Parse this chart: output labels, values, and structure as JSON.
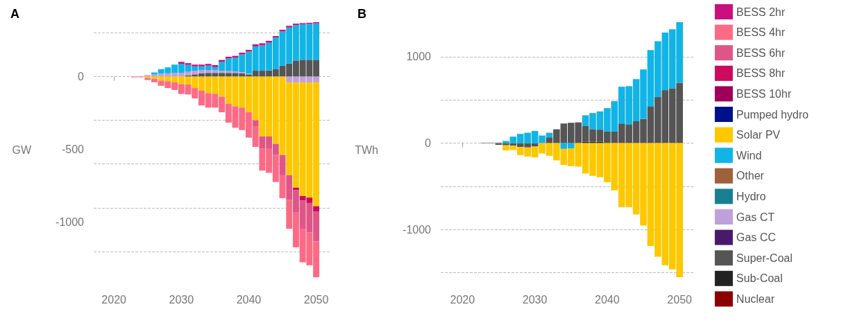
{
  "chart_data": [
    {
      "type": "bar",
      "title": "A",
      "ylabel": "GW",
      "stacked": true,
      "grid": "y",
      "legend": false,
      "x": [
        2023,
        2024,
        2025,
        2026,
        2027,
        2028,
        2029,
        2030,
        2031,
        2032,
        2033,
        2034,
        2035,
        2036,
        2037,
        2038,
        2039,
        2040,
        2041,
        2042,
        2043,
        2044,
        2045,
        2046,
        2047,
        2048,
        2049,
        2050
      ],
      "xlim": [
        2017,
        2052
      ],
      "xticks": [
        2020,
        2030,
        2040,
        2050
      ],
      "ylim": [
        -1376,
        373
      ],
      "yticks": [
        -1000,
        -500,
        0
      ],
      "series": [
        {
          "color": "#555555",
          "values": [
            null,
            null,
            null,
            null,
            null,
            null,
            null,
            null,
            8,
            15,
            22,
            25,
            25,
            25,
            25,
            25,
            22,
            15,
            40,
            40,
            42,
            50,
            75,
            90,
            110,
            115,
            115,
            115
          ]
        },
        {
          "color": "#c0a0da",
          "values": [
            null,
            null,
            10,
            15,
            20,
            22,
            25,
            25,
            25,
            25,
            22,
            20,
            18,
            15,
            12,
            10,
            8,
            5,
            null,
            null,
            null,
            null,
            null,
            -40,
            -40,
            -40,
            -40,
            -40
          ]
        },
        {
          "color": "#fdc800",
          "values": [
            null,
            null,
            -10,
            -15,
            -28,
            -32,
            -40,
            -52,
            -55,
            -79,
            -95,
            -114,
            -118,
            -139,
            -186,
            -205,
            -213,
            -245,
            -300,
            -411,
            -411,
            -462,
            -538,
            -637,
            -722,
            -779,
            -790,
            -849
          ]
        },
        {
          "color": "#12b4e6",
          "values": [
            null,
            null,
            null,
            13,
            31,
            41,
            57,
            63,
            47,
            30,
            26,
            30,
            22,
            62,
            87,
            95,
            122,
            151,
            167,
            174,
            190,
            218,
            234,
            246,
            243,
            243,
            246,
            250
          ]
        },
        {
          "color": "#cc0a5e",
          "values": [
            null,
            null,
            null,
            null,
            null,
            null,
            null,
            null,
            null,
            null,
            null,
            null,
            null,
            null,
            null,
            null,
            null,
            null,
            null,
            null,
            null,
            null,
            null,
            null,
            -16,
            -32,
            -37,
            -36
          ]
        },
        {
          "color": "#e05587",
          "values": [
            null,
            null,
            null,
            null,
            null,
            null,
            null,
            null,
            null,
            null,
            null,
            null,
            null,
            null,
            null,
            null,
            null,
            null,
            -40,
            -84,
            -85,
            -76,
            -139,
            -170,
            -155,
            -196,
            -201,
            -206
          ]
        },
        {
          "color": "#fd6a85",
          "values": [
            -5,
            -5,
            -14,
            -24,
            -35,
            -47,
            -52,
            -67,
            -68,
            -71,
            -103,
            -99,
            -95,
            -106,
            -130,
            -146,
            -154,
            -174,
            -142,
            -150,
            -164,
            -185,
            -157,
            -197,
            -238,
            -227,
            -226,
            -245
          ]
        },
        {
          "color": "#c8107f",
          "values": [
            null,
            null,
            null,
            null,
            null,
            null,
            null,
            13,
            12,
            12,
            12,
            12,
            14,
            12,
            12,
            12,
            12,
            12,
            14,
            14,
            13,
            10,
            12,
            12,
            10,
            8,
            8,
            8
          ]
        }
      ]
    },
    {
      "type": "bar",
      "title": "B",
      "ylabel": "TWh",
      "stacked": true,
      "grid": "y",
      "legend": "right",
      "x": [
        2023,
        2024,
        2025,
        2026,
        2027,
        2028,
        2029,
        2030,
        2031,
        2032,
        2033,
        2034,
        2035,
        2036,
        2037,
        2038,
        2039,
        2040,
        2041,
        2042,
        2043,
        2044,
        2045,
        2046,
        2047,
        2048,
        2049,
        2050
      ],
      "xlim": [
        2017,
        2052
      ],
      "xticks": [
        2020,
        2030,
        2040,
        2050
      ],
      "ylim": [
        -1552,
        1400
      ],
      "yticks": [
        -1000,
        0,
        1000
      ],
      "series": [
        {
          "name": "Nuclear",
          "color": "#8b0000",
          "values": [
            null,
            null,
            null,
            null,
            null,
            null,
            null,
            null,
            null,
            null,
            null,
            null,
            null,
            null,
            null,
            null,
            null,
            null,
            null,
            null,
            null,
            null,
            null,
            null,
            null,
            null,
            null,
            null
          ]
        },
        {
          "name": "Sub-Coal",
          "color": "#222222",
          "values": [
            null,
            null,
            null,
            null,
            null,
            null,
            null,
            null,
            null,
            null,
            null,
            null,
            null,
            null,
            15,
            15,
            15,
            null,
            null,
            null,
            null,
            null,
            null,
            null,
            null,
            null,
            null,
            null
          ]
        },
        {
          "name": "Super-Coal",
          "color": "#555555",
          "values": [
            5,
            5,
            -20,
            -25,
            -30,
            -45,
            -50,
            -40,
            null,
            67,
            160,
            227,
            235,
            240,
            187,
            147,
            141,
            133,
            133,
            227,
            213,
            253,
            280,
            427,
            533,
            613,
            635,
            699
          ]
        },
        {
          "name": "Gas CC",
          "color": "#4a1a6a",
          "values": [
            null,
            null,
            null,
            null,
            null,
            null,
            null,
            null,
            null,
            null,
            null,
            null,
            null,
            null,
            null,
            null,
            null,
            null,
            null,
            null,
            null,
            null,
            null,
            null,
            null,
            null,
            null,
            null
          ]
        },
        {
          "name": "Gas CT",
          "color": "#c0a0da",
          "values": [
            null,
            null,
            8,
            null,
            null,
            null,
            null,
            null,
            null,
            null,
            null,
            null,
            null,
            null,
            null,
            null,
            null,
            null,
            null,
            null,
            null,
            null,
            null,
            null,
            null,
            null,
            null,
            null
          ]
        },
        {
          "name": "Hydro",
          "color": "#1a7f90",
          "values": [
            null,
            null,
            null,
            null,
            null,
            null,
            null,
            null,
            null,
            null,
            null,
            null,
            null,
            null,
            null,
            null,
            null,
            null,
            null,
            null,
            null,
            null,
            null,
            null,
            null,
            null,
            null,
            null
          ]
        },
        {
          "name": "Other",
          "color": "#a0603a",
          "values": [
            null,
            null,
            null,
            null,
            null,
            null,
            null,
            null,
            null,
            null,
            null,
            null,
            null,
            null,
            null,
            null,
            null,
            null,
            null,
            null,
            null,
            null,
            null,
            null,
            null,
            null,
            null,
            null
          ]
        },
        {
          "name": "Wind",
          "color": "#12b4e6",
          "values": [
            null,
            null,
            null,
            25,
            75,
            107,
            120,
            141,
            88,
            53,
            null,
            -67,
            -60,
            null,
            120,
            186,
            211,
            272,
            352,
            426,
            446,
            488,
            573,
            650,
            646,
            667,
            682,
            701
          ]
        },
        {
          "name": "Solar PV",
          "color": "#fdc800",
          "values": [
            null,
            null,
            null,
            -60,
            -50,
            -94,
            -105,
            -125,
            -120,
            -147,
            -200,
            -186,
            -207,
            -272,
            -352,
            -379,
            -395,
            -453,
            -547,
            -741,
            -741,
            -827,
            -955,
            -1192,
            -1315,
            -1413,
            -1461,
            -1552
          ]
        },
        {
          "name": "Pumped hydro",
          "color": "#000f8a",
          "values": [
            null,
            null,
            null,
            null,
            null,
            null,
            null,
            null,
            null,
            null,
            null,
            null,
            null,
            null,
            null,
            null,
            null,
            null,
            null,
            null,
            null,
            null,
            null,
            null,
            null,
            null,
            null,
            null
          ]
        },
        {
          "name": "BESS 10hr",
          "color": "#a0005a",
          "values": [
            null,
            null,
            null,
            null,
            null,
            null,
            null,
            null,
            null,
            null,
            null,
            null,
            null,
            null,
            null,
            null,
            null,
            null,
            null,
            null,
            null,
            null,
            null,
            null,
            null,
            null,
            null,
            null
          ]
        },
        {
          "name": "BESS 8hr",
          "color": "#cc0a5e",
          "values": [
            null,
            null,
            null,
            null,
            null,
            null,
            null,
            null,
            null,
            null,
            null,
            null,
            null,
            null,
            null,
            null,
            null,
            null,
            null,
            null,
            null,
            null,
            null,
            null,
            null,
            null,
            null,
            null
          ]
        },
        {
          "name": "BESS 6hr",
          "color": "#e05587",
          "values": [
            null,
            null,
            null,
            null,
            null,
            null,
            null,
            null,
            null,
            null,
            null,
            null,
            null,
            null,
            null,
            null,
            null,
            null,
            null,
            null,
            null,
            null,
            null,
            null,
            null,
            null,
            null,
            null
          ]
        },
        {
          "name": "BESS 4hr",
          "color": "#fd6a85",
          "values": [
            null,
            null,
            null,
            null,
            null,
            null,
            null,
            null,
            null,
            null,
            null,
            null,
            null,
            null,
            null,
            null,
            null,
            null,
            null,
            null,
            null,
            null,
            null,
            null,
            null,
            null,
            null,
            null
          ]
        },
        {
          "name": "BESS 2hr",
          "color": "#c8107f",
          "values": [
            null,
            null,
            null,
            null,
            null,
            null,
            null,
            null,
            null,
            null,
            null,
            null,
            null,
            null,
            null,
            null,
            null,
            null,
            null,
            null,
            null,
            null,
            null,
            null,
            null,
            null,
            null,
            null
          ]
        }
      ]
    }
  ]
}
